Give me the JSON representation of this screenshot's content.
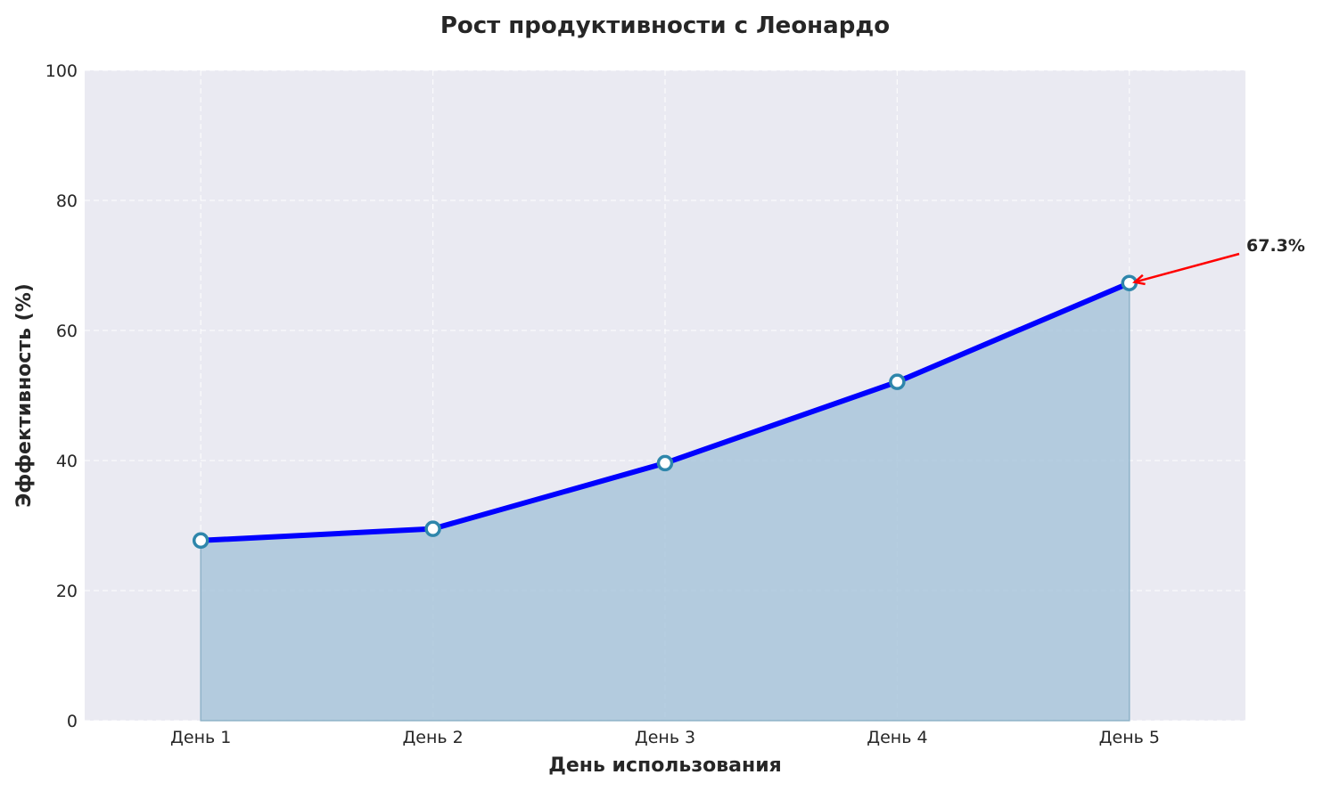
{
  "chart_data": {
    "type": "area",
    "title": "Рост продуктивности с Леонардо",
    "xlabel": "День использования",
    "ylabel": "Эффективность (%)",
    "categories": [
      "День 1",
      "День 2",
      "День 3",
      "День 4",
      "День 5"
    ],
    "values": [
      27.7,
      29.5,
      39.6,
      52.1,
      67.3
    ],
    "ylim": [
      0,
      100
    ],
    "yticks": [
      0,
      20,
      40,
      60,
      80,
      100
    ],
    "grid": true,
    "annotation": {
      "text": "67.3%",
      "category": "День 5",
      "value": 67.3,
      "color": "#ff0000"
    },
    "colors": {
      "line": "#0000ff",
      "fill": "#a9c6da",
      "marker_edge": "#2e86ab",
      "marker_face": "#ffffff",
      "background": "#eaeaf2"
    }
  }
}
